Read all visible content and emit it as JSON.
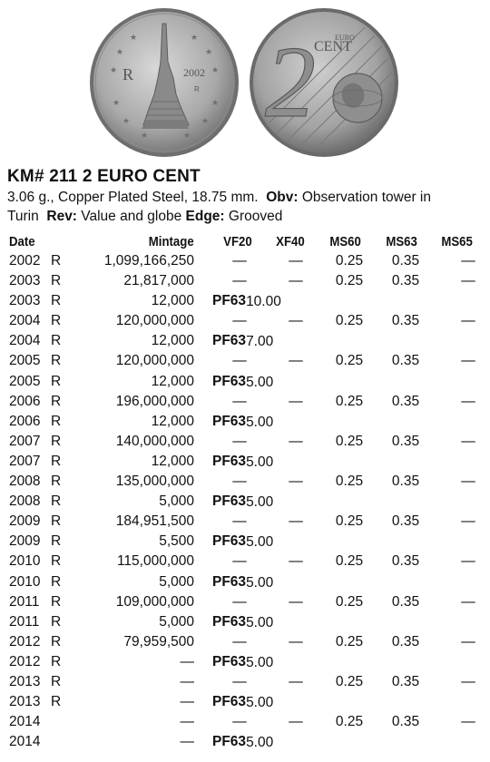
{
  "header": {
    "title": "KM# 211  2 EURO CENT",
    "spec": "3.06 g., Copper Plated Steel, 18.75 mm.",
    "obv_label": "Obv:",
    "obv_text": "Observation tower in Turin",
    "rev_label": "Rev:",
    "rev_text": "Value and globe",
    "edge_label": "Edge:",
    "edge_text": "Grooved"
  },
  "coins": {
    "obverse_year": "2002",
    "obverse_mark": "R",
    "obverse_mint": "R",
    "reverse_value": "2",
    "reverse_euro": "EURO",
    "reverse_cent": "CENT"
  },
  "columns": {
    "date": "Date",
    "mintage": "Mintage",
    "vf20": "VF20",
    "xf40": "XF40",
    "ms60": "MS60",
    "ms63": "MS63",
    "ms65": "MS65"
  },
  "rows": [
    {
      "year": "2002",
      "mark": "R",
      "mintage": "1,099,166,250",
      "vf20": "—",
      "xf40": "—",
      "ms60": "0.25",
      "ms63": "0.35",
      "ms65": "—"
    },
    {
      "year": "2003",
      "mark": "R",
      "mintage": "21,817,000",
      "vf20": "—",
      "xf40": "—",
      "ms60": "0.25",
      "ms63": "0.35",
      "ms65": "—"
    },
    {
      "year": "2003",
      "mark": "R",
      "mintage": "12,000",
      "proof_grade": "PF63",
      "proof_value": "10.00"
    },
    {
      "year": "2004",
      "mark": "R",
      "mintage": "120,000,000",
      "vf20": "—",
      "xf40": "—",
      "ms60": "0.25",
      "ms63": "0.35",
      "ms65": "—"
    },
    {
      "year": "2004",
      "mark": "R",
      "mintage": "12,000",
      "proof_grade": "PF63",
      "proof_value": "7.00"
    },
    {
      "year": "2005",
      "mark": "R",
      "mintage": "120,000,000",
      "vf20": "—",
      "xf40": "—",
      "ms60": "0.25",
      "ms63": "0.35",
      "ms65": "—"
    },
    {
      "year": "2005",
      "mark": "R",
      "mintage": "12,000",
      "proof_grade": "PF63",
      "proof_value": "5.00"
    },
    {
      "year": "2006",
      "mark": "R",
      "mintage": "196,000,000",
      "vf20": "—",
      "xf40": "—",
      "ms60": "0.25",
      "ms63": "0.35",
      "ms65": "—"
    },
    {
      "year": "2006",
      "mark": "R",
      "mintage": "12,000",
      "proof_grade": "PF63",
      "proof_value": "5.00"
    },
    {
      "year": "2007",
      "mark": "R",
      "mintage": "140,000,000",
      "vf20": "—",
      "xf40": "—",
      "ms60": "0.25",
      "ms63": "0.35",
      "ms65": "—"
    },
    {
      "year": "2007",
      "mark": "R",
      "mintage": "12,000",
      "proof_grade": "PF63",
      "proof_value": "5.00"
    },
    {
      "year": "2008",
      "mark": "R",
      "mintage": "135,000,000",
      "vf20": "—",
      "xf40": "—",
      "ms60": "0.25",
      "ms63": "0.35",
      "ms65": "—"
    },
    {
      "year": "2008",
      "mark": "R",
      "mintage": "5,000",
      "proof_grade": "PF63",
      "proof_value": "5.00"
    },
    {
      "year": "2009",
      "mark": "R",
      "mintage": "184,951,500",
      "vf20": "—",
      "xf40": "—",
      "ms60": "0.25",
      "ms63": "0.35",
      "ms65": "—"
    },
    {
      "year": "2009",
      "mark": "R",
      "mintage": "5,500",
      "proof_grade": "PF63",
      "proof_value": "5.00"
    },
    {
      "year": "2010",
      "mark": "R",
      "mintage": "115,000,000",
      "vf20": "—",
      "xf40": "—",
      "ms60": "0.25",
      "ms63": "0.35",
      "ms65": "—"
    },
    {
      "year": "2010",
      "mark": "R",
      "mintage": "5,000",
      "proof_grade": "PF63",
      "proof_value": "5.00"
    },
    {
      "year": "2011",
      "mark": "R",
      "mintage": "109,000,000",
      "vf20": "—",
      "xf40": "—",
      "ms60": "0.25",
      "ms63": "0.35",
      "ms65": "—"
    },
    {
      "year": "2011",
      "mark": "R",
      "mintage": "5,000",
      "proof_grade": "PF63",
      "proof_value": "5.00"
    },
    {
      "year": "2012",
      "mark": "R",
      "mintage": "79,959,500",
      "vf20": "—",
      "xf40": "—",
      "ms60": "0.25",
      "ms63": "0.35",
      "ms65": "—"
    },
    {
      "year": "2012",
      "mark": "R",
      "mintage": "—",
      "proof_grade": "PF63",
      "proof_value": "5.00"
    },
    {
      "year": "2013",
      "mark": "R",
      "mintage": "—",
      "vf20": "—",
      "xf40": "—",
      "ms60": "0.25",
      "ms63": "0.35",
      "ms65": "—"
    },
    {
      "year": "2013",
      "mark": "R",
      "mintage": "—",
      "proof_grade": "PF63",
      "proof_value": "5.00"
    },
    {
      "year": "2014",
      "mark": "",
      "mintage": "—",
      "vf20": "—",
      "xf40": "—",
      "ms60": "0.25",
      "ms63": "0.35",
      "ms65": "—"
    },
    {
      "year": "2014",
      "mark": "",
      "mintage": "—",
      "proof_grade": "PF63",
      "proof_value": "5.00"
    }
  ]
}
